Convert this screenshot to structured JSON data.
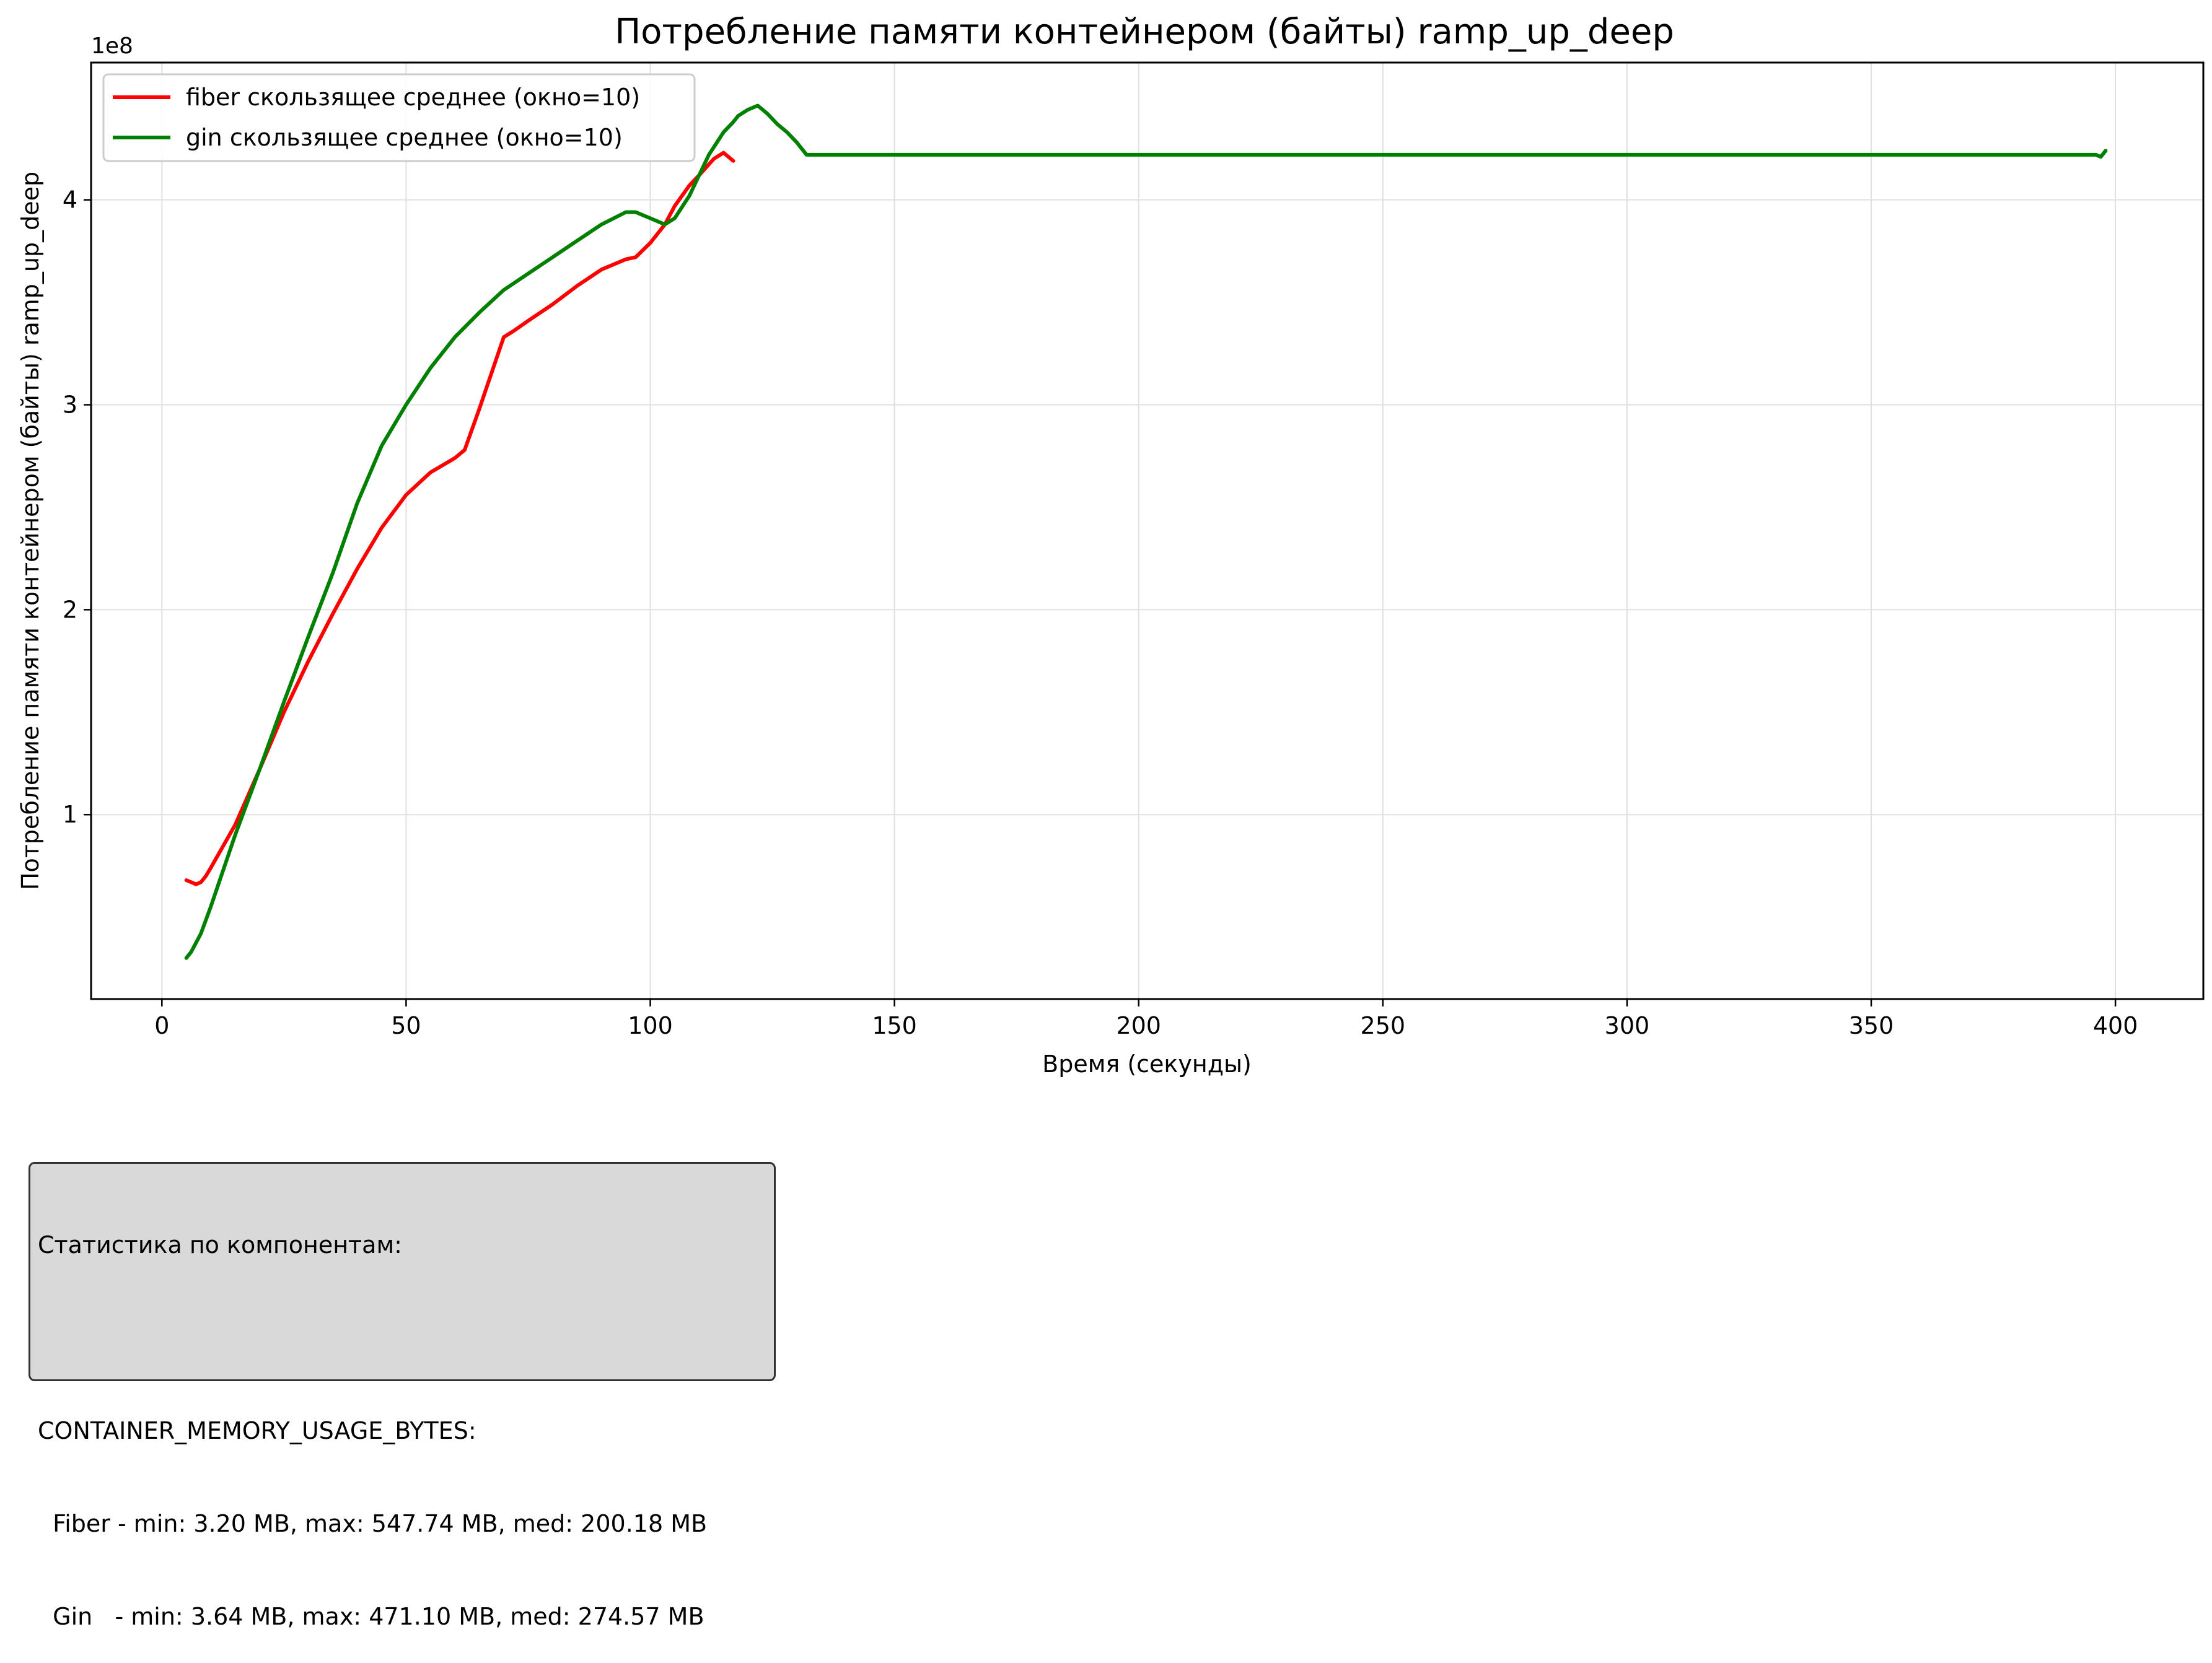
{
  "chart_data": {
    "type": "line",
    "title": "Потребление памяти контейнером  (байты) ramp_up_deep",
    "xlabel": "Время (секунды)",
    "ylabel": "Потребление памяти контейнером  (байты) ramp_up_deep",
    "y_offset_label": "1e8",
    "xlim": [
      -14.5,
      418
    ],
    "ylim": [
      0.1,
      4.67
    ],
    "x_ticks": [
      0,
      50,
      100,
      150,
      200,
      250,
      300,
      350,
      400
    ],
    "y_ticks": [
      1,
      2,
      3,
      4
    ],
    "y_unit_multiplier": 100000000,
    "grid": true,
    "legend_position": "top-left",
    "series": [
      {
        "name": "fiber скользящее среднее (окно=10)",
        "color": "#ff0000",
        "x": [
          5,
          6,
          7,
          8,
          9,
          10,
          15,
          20,
          25,
          30,
          35,
          40,
          45,
          50,
          55,
          60,
          62,
          65,
          70,
          72,
          75,
          80,
          85,
          90,
          95,
          97,
          100,
          103,
          105,
          108,
          110,
          113,
          115,
          117
        ],
        "y": [
          0.68,
          0.67,
          0.66,
          0.67,
          0.7,
          0.74,
          0.95,
          1.22,
          1.5,
          1.75,
          1.98,
          2.2,
          2.4,
          2.56,
          2.67,
          2.74,
          2.78,
          2.98,
          3.33,
          3.36,
          3.41,
          3.49,
          3.58,
          3.66,
          3.71,
          3.72,
          3.79,
          3.88,
          3.97,
          4.07,
          4.12,
          4.2,
          4.23,
          4.19
        ]
      },
      {
        "name": "gin скользящее среднее (окно=10)",
        "color": "#008000",
        "x": [
          5,
          6,
          8,
          10,
          15,
          20,
          25,
          30,
          35,
          40,
          45,
          50,
          55,
          60,
          65,
          70,
          75,
          80,
          85,
          90,
          95,
          97,
          100,
          103,
          105,
          108,
          110,
          112,
          115,
          117,
          118,
          120,
          122,
          124,
          126,
          128,
          130,
          132,
          135,
          150,
          200,
          250,
          300,
          350,
          396,
          397,
          398
        ],
        "y": [
          0.3,
          0.33,
          0.42,
          0.55,
          0.9,
          1.22,
          1.55,
          1.87,
          2.18,
          2.52,
          2.8,
          3.0,
          3.18,
          3.33,
          3.45,
          3.56,
          3.64,
          3.72,
          3.8,
          3.88,
          3.94,
          3.94,
          3.91,
          3.88,
          3.91,
          4.02,
          4.12,
          4.22,
          4.33,
          4.38,
          4.41,
          4.44,
          4.46,
          4.42,
          4.37,
          4.33,
          4.28,
          4.22,
          4.22,
          4.22,
          4.22,
          4.22,
          4.22,
          4.22,
          4.22,
          4.21,
          4.24
        ]
      }
    ]
  },
  "stats": {
    "lines": [
      "Статистика по компонентам:",
      "",
      "CONTAINER_MEMORY_USAGE_BYTES:",
      "  Fiber - min: 3.20 MB, max: 547.74 MB, med: 200.18 MB",
      "  Gin   - min: 3.64 MB, max: 471.10 MB, med: 274.57 MB"
    ]
  }
}
